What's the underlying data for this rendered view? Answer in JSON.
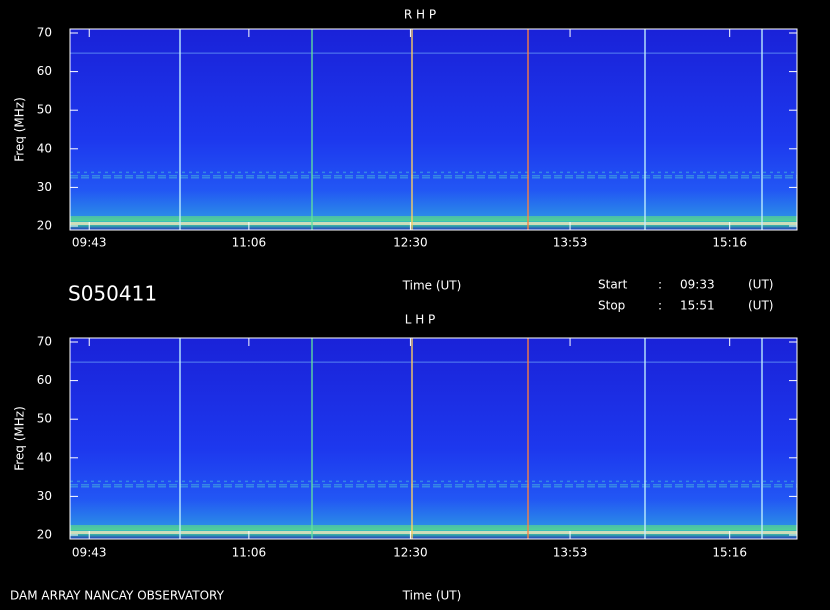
{
  "header": {
    "id": "S050411",
    "start_label": "Start",
    "stop_label": "Stop",
    "separator": ":",
    "start": "09:33",
    "stop": "15:51",
    "unit": "(UT)"
  },
  "footer": "DAM ARRAY  NANCAY OBSERVATORY",
  "chart_data": [
    {
      "type": "spectrogram",
      "title": "R H P",
      "xlabel": "Time (UT)",
      "ylabel": "Freq (MHz)",
      "xlim": [
        573,
        951
      ],
      "xticks": [
        {
          "value": 583,
          "label": "09:43"
        },
        {
          "value": 666,
          "label": "11:06"
        },
        {
          "value": 750,
          "label": "12:30"
        },
        {
          "value": 833,
          "label": "13:53"
        },
        {
          "value": 916,
          "label": "15:16"
        }
      ],
      "ylim": [
        20,
        70
      ],
      "yticks": [
        20,
        30,
        40,
        50,
        60,
        70
      ]
    },
    {
      "type": "spectrogram",
      "title": "L H P",
      "xlabel": "Time (UT)",
      "ylabel": "Freq (MHz)",
      "xlim": [
        573,
        951
      ],
      "xticks": [
        {
          "value": 583,
          "label": "09:43"
        },
        {
          "value": 666,
          "label": "11:06"
        },
        {
          "value": 750,
          "label": "12:30"
        },
        {
          "value": 833,
          "label": "13:53"
        },
        {
          "value": 916,
          "label": "15:16"
        }
      ],
      "ylim": [
        20,
        70
      ],
      "yticks": [
        20,
        30,
        40,
        50,
        60,
        70
      ]
    }
  ]
}
